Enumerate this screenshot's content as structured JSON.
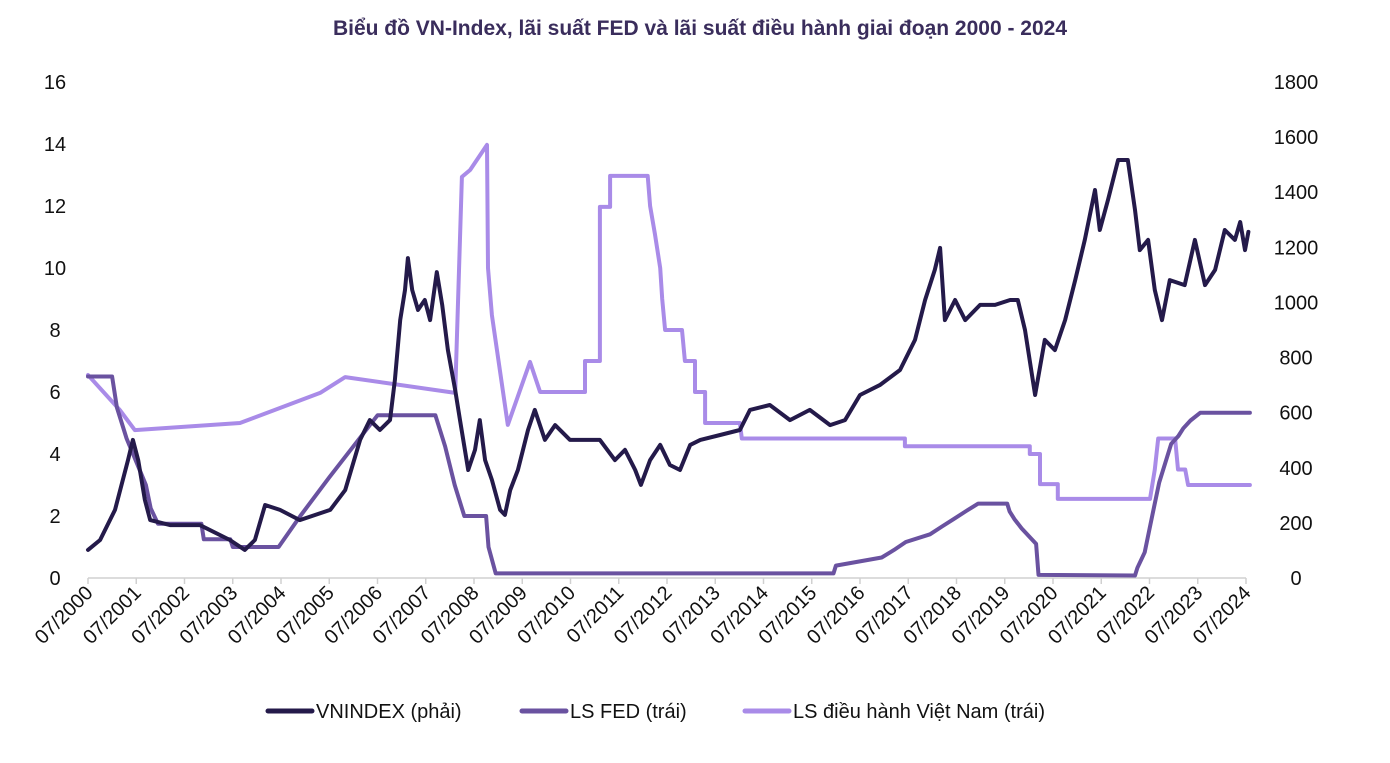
{
  "chart_data": {
    "type": "line",
    "title": "Biểu đồ VN-Index, lãi suất FED và lãi suất điều hành giai đoạn 2000 - 2024",
    "x_ticks": [
      "07/2000",
      "07/2001",
      "07/2002",
      "07/2003",
      "07/2004",
      "07/2005",
      "07/2006",
      "07/2007",
      "07/2008",
      "07/2009",
      "07/2010",
      "07/2011",
      "07/2012",
      "07/2013",
      "07/2014",
      "07/2015",
      "07/2016",
      "07/2017",
      "07/2018",
      "07/2019",
      "07/2020",
      "07/2021",
      "07/2022",
      "07/2023",
      "07/2024"
    ],
    "xlim": [
      2000.5,
      2024.5
    ],
    "y_left": {
      "ylim": [
        0,
        16
      ],
      "ticks": [
        "0",
        "2",
        "4",
        "6",
        "8",
        "10",
        "12",
        "14",
        "16"
      ]
    },
    "y_right": {
      "ylim": [
        0,
        1800
      ],
      "ticks": [
        "0",
        "200",
        "400",
        "600",
        "800",
        "1000",
        "1200",
        "1400",
        "1600",
        "1800"
      ]
    },
    "grid": false,
    "legend_position": "bottom",
    "series": [
      {
        "name": "VNINDEX (phải)",
        "axis": "right",
        "color": "#241a4a",
        "x": [
          2000.5,
          2000.75,
          2001.06,
          2001.33,
          2001.43,
          2001.54,
          2001.68,
          2001.79,
          2002.2,
          2002.82,
          2003.44,
          2003.75,
          2003.96,
          2004.17,
          2004.48,
          2004.89,
          2005.52,
          2005.83,
          2006.14,
          2006.34,
          2006.55,
          2006.76,
          2006.86,
          2006.97,
          2007.07,
          2007.13,
          2007.22,
          2007.34,
          2007.48,
          2007.59,
          2007.73,
          2007.84,
          2007.96,
          2008.11,
          2008.21,
          2008.38,
          2008.52,
          2008.62,
          2008.73,
          2008.87,
          2009.04,
          2009.14,
          2009.25,
          2009.41,
          2009.62,
          2009.76,
          2009.97,
          2010.18,
          2010.49,
          2010.9,
          2011.11,
          2011.42,
          2011.63,
          2011.84,
          2011.96,
          2012.15,
          2012.36,
          2012.56,
          2012.77,
          2012.98,
          2013.19,
          2013.6,
          2014.01,
          2014.22,
          2014.63,
          2015.05,
          2015.46,
          2015.88,
          2016.19,
          2016.5,
          2016.91,
          2017.33,
          2017.64,
          2017.85,
          2018.05,
          2018.16,
          2018.26,
          2018.47,
          2018.68,
          2018.99,
          2019.3,
          2019.61,
          2019.77,
          2019.92,
          2020.13,
          2020.33,
          2020.54,
          2020.75,
          2020.96,
          2021.16,
          2021.37,
          2021.47,
          2021.64,
          2021.85,
          2022.05,
          2022.2,
          2022.3,
          2022.47,
          2022.61,
          2022.76,
          2022.92,
          2023.23,
          2023.44,
          2023.65,
          2023.86,
          2024.06,
          2024.27,
          2024.38,
          2024.48,
          2024.55
        ],
        "values": [
          102,
          138,
          247,
          428,
          501,
          428,
          283,
          210,
          192,
          192,
          138,
          102,
          138,
          265,
          247,
          210,
          247,
          319,
          501,
          573,
          537,
          573,
          719,
          936,
          1045,
          1161,
          1045,
          973,
          1009,
          936,
          1110,
          991,
          827,
          682,
          573,
          392,
          465,
          573,
          428,
          356,
          247,
          229,
          319,
          392,
          537,
          610,
          501,
          555,
          501,
          501,
          501,
          428,
          465,
          392,
          338,
          428,
          483,
          410,
          392,
          483,
          501,
          519,
          537,
          610,
          628,
          573,
          610,
          555,
          573,
          664,
          700,
          755,
          864,
          1009,
          1118,
          1198,
          936,
          1009,
          936,
          991,
          991,
          1009,
          1009,
          900,
          664,
          864,
          827,
          936,
          1081,
          1227,
          1408,
          1263,
          1372,
          1517,
          1517,
          1336,
          1190,
          1227,
          1045,
          936,
          1081,
          1063,
          1227,
          1063,
          1118,
          1263,
          1227,
          1292,
          1190,
          1256
        ]
      },
      {
        "name": "LS FED (trái)",
        "axis": "left",
        "color": "#6a52a0",
        "x": [
          2000.5,
          2001.0,
          2001.1,
          2001.3,
          2001.5,
          2001.7,
          2001.8,
          2001.95,
          2002.85,
          2002.9,
          2003.45,
          2003.5,
          2004.45,
          2004.9,
          2005.5,
          2006.0,
          2006.5,
          2007.7,
          2007.9,
          2008.1,
          2008.3,
          2008.75,
          2008.8,
          2008.95,
          2015.95,
          2016.0,
          2016.95,
          2017.2,
          2017.45,
          2017.95,
          2018.2,
          2018.45,
          2018.7,
          2018.95,
          2019.55,
          2019.6,
          2019.7,
          2019.85,
          2020.15,
          2020.2,
          2022.2,
          2022.25,
          2022.4,
          2022.5,
          2022.6,
          2022.7,
          2022.85,
          2022.95,
          2023.1,
          2023.2,
          2023.35,
          2023.55,
          2024.58
        ],
        "values": [
          6.5,
          6.5,
          5.5,
          4.5,
          3.75,
          3.0,
          2.25,
          1.75,
          1.75,
          1.25,
          1.25,
          1.0,
          1.0,
          2.0,
          3.25,
          4.25,
          5.25,
          5.25,
          4.25,
          3.0,
          2.0,
          2.0,
          1.0,
          0.15,
          0.15,
          0.4,
          0.66,
          0.9,
          1.16,
          1.41,
          1.66,
          1.91,
          2.16,
          2.4,
          2.4,
          2.15,
          1.9,
          1.6,
          1.1,
          0.1,
          0.08,
          0.33,
          0.83,
          1.58,
          2.33,
          3.08,
          3.83,
          4.33,
          4.58,
          4.83,
          5.08,
          5.33,
          5.33
        ]
      },
      {
        "name": "LS điều hành Việt Nam (trái)",
        "axis": "left",
        "color": "#a98be8",
        "x": [
          2000.5,
          2001.16,
          2001.47,
          2003.65,
          2005.31,
          2005.83,
          2008.11,
          2008.25,
          2008.42,
          2008.77,
          2008.79,
          2008.87,
          2009.2,
          2009.66,
          2009.87,
          2010.8,
          2010.8,
          2011.11,
          2011.11,
          2011.32,
          2011.32,
          2012.1,
          2012.15,
          2012.25,
          2012.36,
          2012.4,
          2012.46,
          2012.81,
          2012.87,
          2013.08,
          2013.08,
          2013.29,
          2013.29,
          2014.01,
          2014.05,
          2017.43,
          2017.43,
          2020.02,
          2020.02,
          2020.23,
          2020.23,
          2020.6,
          2020.6,
          2022.51,
          2022.61,
          2022.68,
          2023.03,
          2023.09,
          2023.24,
          2023.3,
          2024.58
        ],
        "values": [
          6.55,
          5.42,
          4.77,
          5.0,
          5.97,
          6.48,
          5.97,
          12.94,
          13.16,
          13.97,
          10.0,
          8.48,
          4.94,
          6.97,
          6.0,
          6.0,
          7.0,
          7.0,
          11.97,
          11.97,
          12.97,
          12.97,
          12.0,
          11.1,
          10.0,
          9.0,
          8.0,
          8.0,
          7.0,
          7.0,
          6.0,
          6.0,
          5.0,
          5.0,
          4.5,
          4.5,
          4.25,
          4.25,
          4.0,
          4.0,
          3.03,
          3.03,
          2.55,
          2.55,
          3.5,
          4.5,
          4.5,
          3.5,
          3.5,
          3.0,
          3.0
        ]
      }
    ]
  }
}
